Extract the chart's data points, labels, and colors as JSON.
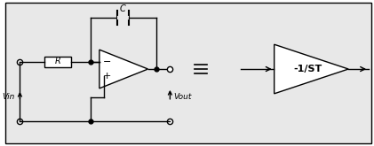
{
  "bg_color": "#e8e8e8",
  "line_color": "#000000",
  "line_width": 1.0,
  "fig_bg": "#ffffff",
  "label_vin": "Vin",
  "label_vout": "Vout",
  "label_R": "R",
  "label_C": "C",
  "label_block": "-1/ST"
}
